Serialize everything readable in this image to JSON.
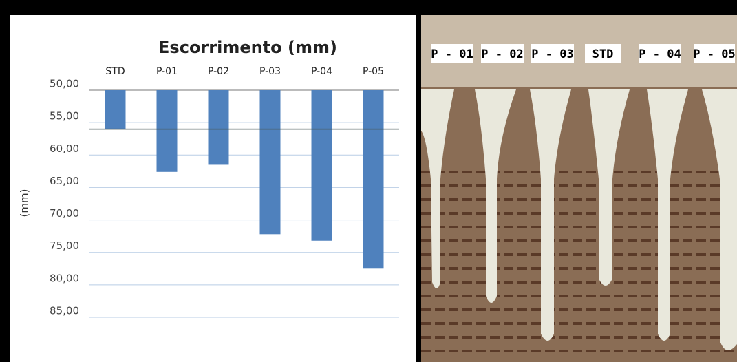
{
  "chart_data": {
    "type": "bar",
    "title": "Escorrimento (mm)",
    "y_label": "(mm)",
    "categories": [
      "STD",
      "P-01",
      "P-02",
      "P-03",
      "P-04",
      "P-05"
    ],
    "values": [
      56,
      62.6,
      61.5,
      72.2,
      73.2,
      77.5
    ],
    "color": "#4f81bd",
    "inverted": true,
    "grid": true,
    "ylim": [
      50,
      85
    ],
    "yticks": [
      {
        "value": 50,
        "label": "50,00"
      },
      {
        "value": 55,
        "label": "55,00"
      },
      {
        "value": 60,
        "label": "60,00"
      },
      {
        "value": 65,
        "label": "65,00"
      },
      {
        "value": 70,
        "label": "70,00"
      },
      {
        "value": 75,
        "label": "75,00"
      },
      {
        "value": 80,
        "label": "80,00"
      },
      {
        "value": 85,
        "label": "85,00"
      }
    ]
  },
  "photo": {
    "labels": [
      "P - 01",
      "P - 02",
      "P - 03",
      "STD",
      "P - 04",
      "P - 05"
    ]
  }
}
